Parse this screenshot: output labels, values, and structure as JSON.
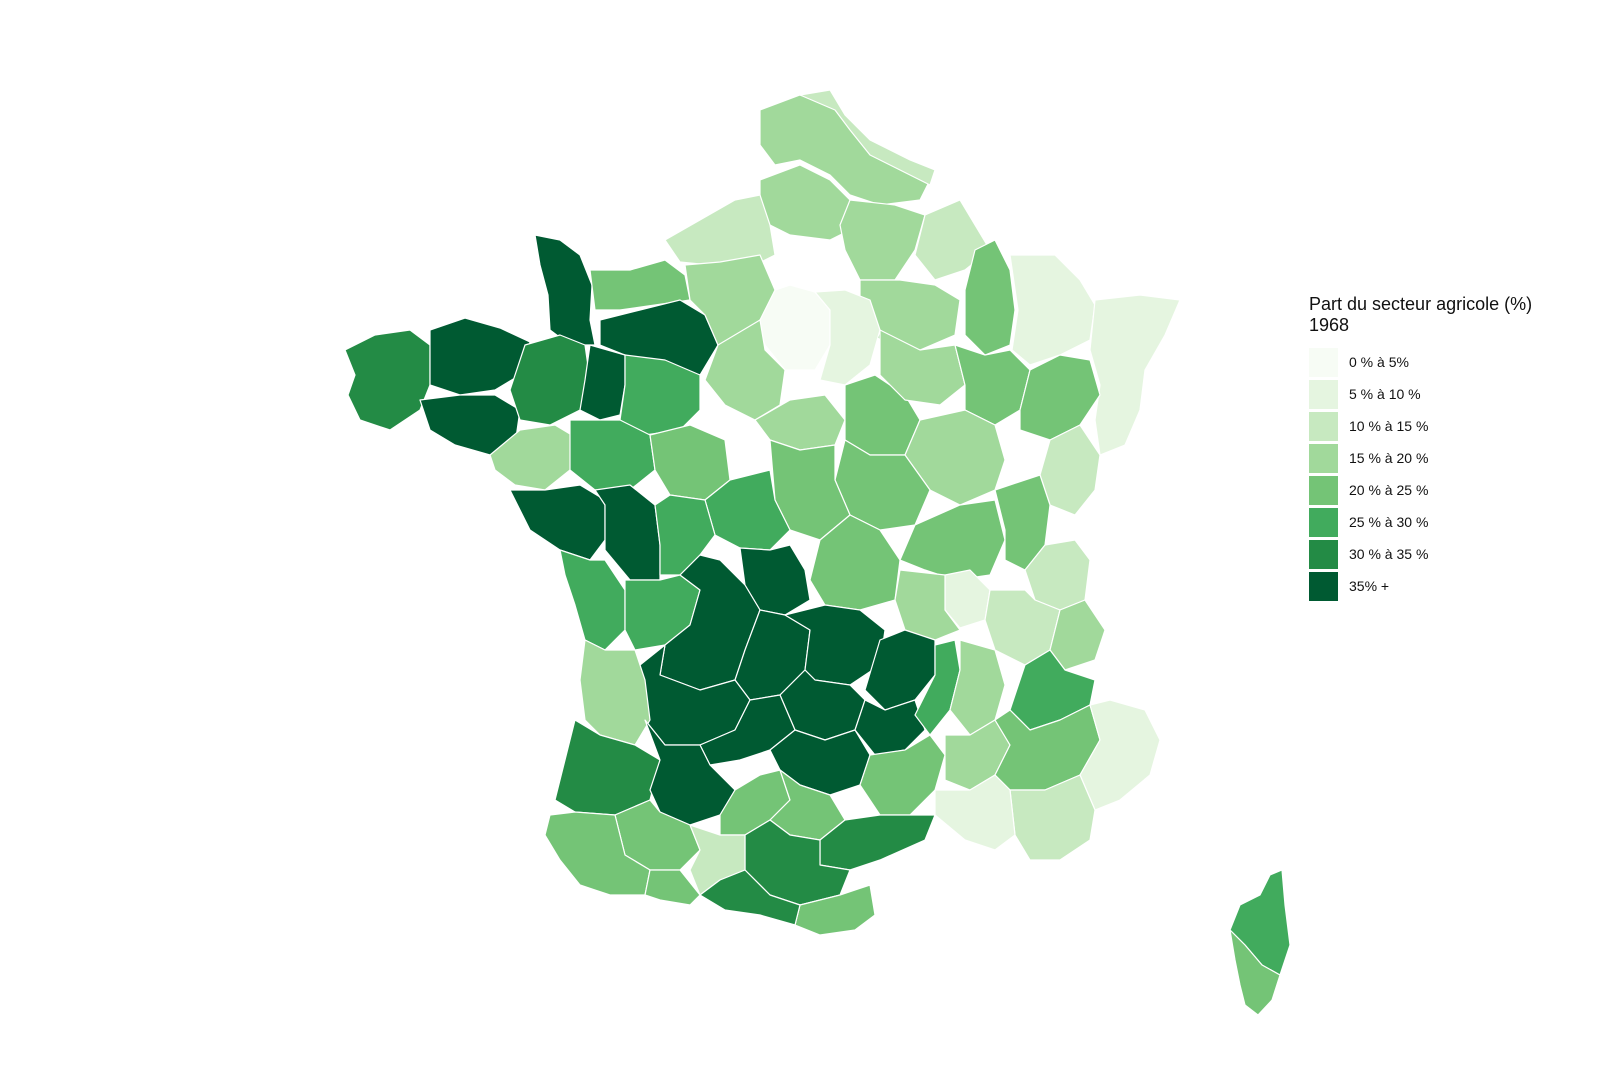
{
  "legend": {
    "title": "Part du secteur agricole (%)",
    "subtitle": "1968",
    "classes": [
      {
        "label": "0 % à 5%",
        "color": "#f7fcf5"
      },
      {
        "label": "5 % à 10 %",
        "color": "#e5f5e0"
      },
      {
        "label": "10 % à 15 %",
        "color": "#c7e9c0"
      },
      {
        "label": "15 % à 20 %",
        "color": "#a1d99b"
      },
      {
        "label": "20 % à 25 %",
        "color": "#74c476"
      },
      {
        "label": "25 % à 30 %",
        "color": "#41ab5d"
      },
      {
        "label": "30 % à 35 %",
        "color": "#238b45"
      },
      {
        "label": "35% +",
        "color": "#005a32"
      }
    ]
  },
  "map": {
    "region_classes": {
      "nord": 3,
      "pas_de_calais_east": 2,
      "somme": 3,
      "seine_maritime": 2,
      "aisne": 3,
      "ardennes": 2,
      "marne": 3,
      "meuse": 4,
      "moselle_lorraine": 1,
      "alsace_vosges": 1,
      "paris": 0,
      "seine_et_marne": 1,
      "manche": 7,
      "calvados": 4,
      "orne": 7,
      "eure": 3,
      "eure_et_loir": 3,
      "finistere": 6,
      "cotes_d_armor": 7,
      "morbihan": 7,
      "ille_et_vilaine": 6,
      "mayenne": 7,
      "sarthe": 5,
      "loire_atlantique": 3,
      "maine_et_loire": 5,
      "vendee": 7,
      "deux_sevres": 7,
      "indre_et_loire": 4,
      "loiret": 3,
      "yonne": 4,
      "aube": 3,
      "haute_marne": 4,
      "haute_saone": 4,
      "doubs": 2,
      "cote_d_or": 3,
      "nievre": 4,
      "cher": 4,
      "indre": 5,
      "vienne": 5,
      "charente_maritime": 5,
      "charente": 5,
      "creuse": 7,
      "allier": 4,
      "saone_et_loire": 4,
      "jura": 4,
      "ain": 2,
      "rhone": 1,
      "loire": 3,
      "isere": 2,
      "savoie": 3,
      "haute_vienne": 7,
      "correze": 7,
      "puy_de_dome": 7,
      "cantal": 7,
      "haute_loire": 7,
      "dordogne": 7,
      "lot": 7,
      "aveyron": 7,
      "lozere": 7,
      "ardeche": 5,
      "drome": 3,
      "hautes_alpes": 5,
      "gironde": 3,
      "landes": 6,
      "lot_et_garonne": 7,
      "gers": 4,
      "tarn_et_garonne": 4,
      "tarn": 4,
      "gard": 4,
      "vaucluse": 3,
      "alpes_haute_provence": 4,
      "alpes_maritimes": 1,
      "var": 2,
      "bouches_du_rhone": 1,
      "herault": 6,
      "aude": 6,
      "pyrenees_orientales": 4,
      "haute_garonne": 2,
      "ariege": 6,
      "pyrenees_atlantiques": 4,
      "hautes_pyrenees": 4,
      "corse_nord": 5,
      "corse_sud": 4
    }
  }
}
